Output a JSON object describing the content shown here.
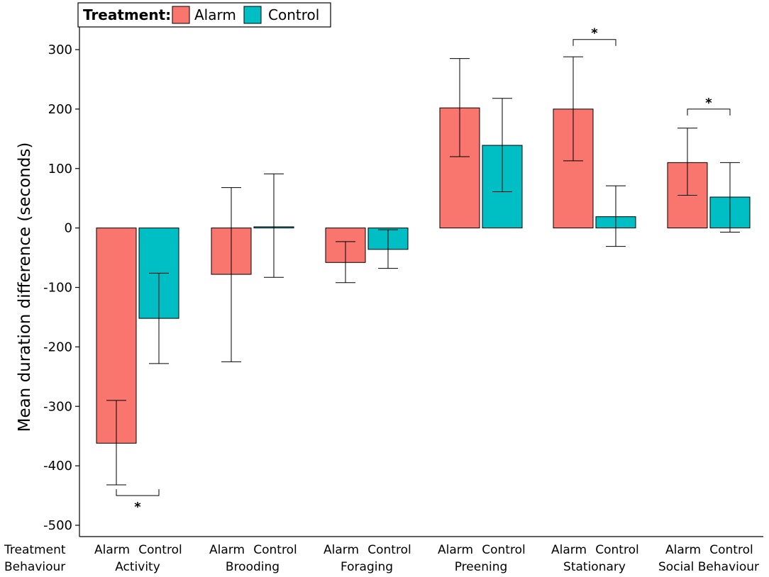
{
  "chart_data": {
    "type": "bar",
    "title": "",
    "xlabel": "",
    "ylabel": "Mean duration difference (seconds)",
    "ylim": [
      -520,
      340
    ],
    "yticks": [
      300,
      200,
      100,
      0,
      -100,
      -200,
      -300,
      -400,
      -500
    ],
    "ytick_labels": [
      "300",
      "200",
      "100",
      "0",
      "-100",
      "-200",
      "-300",
      "-400",
      "-500"
    ],
    "grid": false,
    "legend": {
      "position": "top-left",
      "title": "Treatment:",
      "entries": [
        {
          "name": "Alarm",
          "color": "#f8766d"
        },
        {
          "name": "Control",
          "color": "#00bfc4"
        }
      ]
    },
    "row_labels": {
      "treatment": "Treatment",
      "behaviour": "Behaviour"
    },
    "categories": [
      "Activity",
      "Brooding",
      "Foraging",
      "Preening",
      "Stationary",
      "Social Behaviour"
    ],
    "series": [
      {
        "name": "Alarm",
        "color": "#f8766d",
        "values": [
          -362,
          -78,
          -58,
          202,
          200,
          110
        ],
        "error_low": [
          -432,
          -225,
          -92,
          120,
          113,
          55
        ],
        "error_high": [
          -290,
          68,
          -23,
          285,
          288,
          168
        ]
      },
      {
        "name": "Control",
        "color": "#00bfc4",
        "values": [
          -152,
          2,
          -36,
          139,
          19,
          52
        ],
        "error_low": [
          -228,
          -83,
          -68,
          61,
          -31,
          -7
        ],
        "error_high": [
          -76,
          91,
          -3,
          218,
          71,
          110
        ]
      }
    ],
    "significance": [
      {
        "category": "Activity",
        "label": "*",
        "bracket_y": -450,
        "direction": "down"
      },
      {
        "category": "Stationary",
        "label": "*",
        "bracket_y": 317,
        "direction": "up"
      },
      {
        "category": "Social Behaviour",
        "label": "*",
        "bracket_y": 200,
        "direction": "up"
      }
    ]
  }
}
